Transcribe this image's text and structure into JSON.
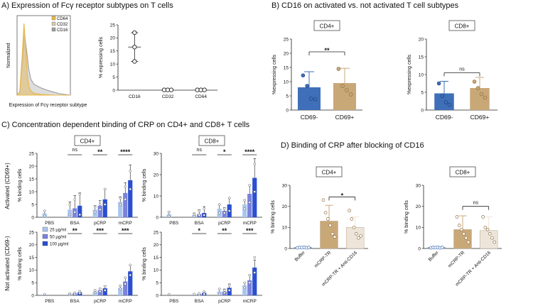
{
  "panel_titles": {
    "A": "A) Expression of Fcγ receptor subtypes on T cells",
    "B": "B) CD16 on activated vs. not activated T cell subtypes",
    "C": "C) Concentration dependent binding of CRP on CD4+ and CD8+ T cells",
    "D": "D) Binding of CRP after blocking of CD16"
  },
  "colors": {
    "cd64": "#e8b84a",
    "cd32": "#d9c9a8",
    "cd16": "#9e9e9e",
    "cd69_neg": "#3f6fb8",
    "cd69_pos": "#c9a878",
    "conc_25": "#a9c6ee",
    "conc_50": "#7a82dd",
    "conc_100": "#2a4fd0",
    "buffer": "#3f6fb8",
    "mcrp_tr": "#c9a878",
    "anti_cd16": "#eee5da"
  },
  "chart_data": [
    {
      "id": "A1",
      "type": "line",
      "title": "",
      "xlabel": "Expression of Fcγ receptor subtype",
      "ylabel": "Normalized",
      "legend": [
        "CD64",
        "CD32",
        "CD16"
      ],
      "legend_position": "top-right",
      "series": [
        {
          "name": "CD64",
          "x": [
            0,
            0.05,
            0.1,
            0.13,
            0.16,
            0.19,
            0.22,
            0.26,
            0.32,
            0.45,
            0.7,
            1
          ],
          "values": [
            0,
            0.05,
            0.6,
            1.0,
            0.7,
            0.3,
            0.12,
            0.05,
            0.02,
            0.01,
            0,
            0
          ]
        },
        {
          "name": "CD32",
          "x": [
            0,
            0.05,
            0.1,
            0.13,
            0.16,
            0.19,
            0.22,
            0.26,
            0.32,
            0.45,
            0.7,
            1
          ],
          "values": [
            0,
            0.04,
            0.5,
            0.92,
            0.66,
            0.3,
            0.13,
            0.06,
            0.03,
            0.01,
            0,
            0
          ]
        },
        {
          "name": "CD16",
          "x": [
            0,
            0.05,
            0.1,
            0.14,
            0.18,
            0.22,
            0.26,
            0.32,
            0.45,
            0.6,
            0.8,
            1
          ],
          "values": [
            0,
            0.04,
            0.45,
            0.85,
            0.62,
            0.36,
            0.22,
            0.15,
            0.1,
            0.06,
            0.02,
            0
          ]
        }
      ]
    },
    {
      "id": "A2",
      "type": "scatter",
      "ylabel": "% expressing cells",
      "ylim": [
        0,
        25
      ],
      "yticks": [
        0,
        5,
        10,
        15,
        20,
        25
      ],
      "categories": [
        "CD16",
        "CD32",
        "CD64"
      ],
      "means": [
        16.5,
        0.1,
        0.1
      ],
      "errors": [
        5.5,
        0,
        0
      ],
      "points": [
        [
          22,
          16.5,
          11
        ],
        [
          0.1,
          0.1,
          0.1
        ],
        [
          0.1,
          0.1,
          0.1
        ]
      ]
    },
    {
      "id": "B_CD4",
      "type": "bar",
      "box_label": "CD4+",
      "ylabel": "%expressing cells",
      "ylim": [
        0,
        25
      ],
      "yticks": [
        0,
        5,
        10,
        15,
        20,
        25
      ],
      "categories": [
        "CD69-",
        "CD69+"
      ],
      "values": [
        8,
        9.5
      ],
      "errors": [
        5.5,
        5.2
      ],
      "points": [
        [
          12.2,
          8.5,
          4,
          3.8
        ],
        [
          14.5,
          8.5,
          7,
          5.5
        ]
      ],
      "comparison": {
        "from": 0,
        "to": 1,
        "label": "**"
      }
    },
    {
      "id": "B_CD8",
      "type": "bar",
      "box_label": "CD8+",
      "ylabel": "%expressing cells",
      "ylim": [
        0,
        20
      ],
      "yticks": [
        0,
        5,
        10,
        15,
        20
      ],
      "categories": [
        "CD69-",
        "CD69+"
      ],
      "values": [
        4.7,
        6.2
      ],
      "errors": [
        3.4,
        3
      ],
      "points": [
        [
          7.5,
          4,
          2.2,
          1.5
        ],
        [
          8,
          6.2,
          4.5,
          3.5
        ]
      ],
      "comparison": {
        "from": 0,
        "to": 1,
        "label": "ns"
      }
    },
    {
      "id": "C_act_CD4",
      "type": "bar",
      "box_label": "CD4+",
      "row_label": "Activated (CD69+)",
      "ylabel": "% binding cells",
      "ylim": [
        0,
        25
      ],
      "yticks": [
        0,
        5,
        10,
        15,
        20,
        25
      ],
      "categories": [
        "PBS",
        "BSA",
        "pCRP",
        "mCRP"
      ],
      "series": [
        {
          "name": "25 µg/ml",
          "values": [
            1.5,
            3,
            3,
            6
          ]
        },
        {
          "name": "50 µg/ml",
          "values": [
            null,
            3.5,
            4.5,
            9.5
          ]
        },
        {
          "name": "100 µg/ml",
          "values": [
            null,
            4.5,
            7,
            14.5
          ]
        }
      ],
      "errors": [
        [
          1,
          3,
          1.5,
          2
        ],
        [
          null,
          5,
          2,
          4
        ],
        [
          null,
          5,
          4,
          6
        ]
      ],
      "points": [
        [
          [
            0.5,
            2.5
          ],
          [
            1,
            5
          ],
          [
            2,
            4
          ],
          [
            5,
            7.5
          ]
        ],
        [
          [],
          [
            2,
            7
          ],
          [
            3,
            5
          ],
          [
            7,
            12
          ]
        ],
        [
          [],
          [
            1,
            9
          ],
          [
            5,
            11
          ],
          [
            11,
            18
          ]
        ]
      ],
      "comparisons": [
        {
          "category": 1,
          "label": "ns"
        },
        {
          "category": 2,
          "label": "**"
        },
        {
          "category": 3,
          "label": "****"
        }
      ]
    },
    {
      "id": "C_act_CD8",
      "type": "bar",
      "box_label": "CD8+",
      "ylabel": "% binding cells",
      "ylim": [
        0,
        30
      ],
      "yticks": [
        0,
        10,
        20,
        30
      ],
      "categories": [
        "PBS",
        "BSA",
        "pCRP",
        "mCRP"
      ],
      "series": [
        {
          "name": "25 µg/ml",
          "values": [
            1.5,
            1,
            4,
            6
          ]
        },
        {
          "name": "50 µg/ml",
          "values": [
            null,
            1.5,
            3,
            11
          ]
        },
        {
          "name": "100 µg/ml",
          "values": [
            null,
            2,
            6,
            18.5
          ]
        }
      ],
      "errors": [
        [
          1,
          1,
          2,
          2
        ],
        [
          null,
          2,
          1.5,
          4
        ],
        [
          null,
          3,
          3,
          9
        ]
      ],
      "points": [
        [
          [
            0.5,
            2.5
          ],
          [
            0.5,
            1.5
          ],
          [
            2,
            6
          ],
          [
            4,
            8
          ]
        ],
        [
          [],
          [
            1,
            3
          ],
          [
            2,
            4
          ],
          [
            7,
            15
          ]
        ],
        [
          [],
          [
            1,
            4
          ],
          [
            3,
            9
          ],
          [
            12,
            25
          ]
        ]
      ],
      "comparisons": [
        {
          "category": 1,
          "label": "ns"
        },
        {
          "category": 2,
          "label": "*"
        },
        {
          "category": 3,
          "label": "****"
        }
      ]
    },
    {
      "id": "C_nonact_CD4",
      "type": "bar",
      "row_label": "Not activated (CD69-)",
      "ylabel": "% binding cells",
      "ylim": [
        0,
        25
      ],
      "yticks": [
        0,
        5,
        10,
        15,
        20,
        25
      ],
      "categories": [
        "PBS",
        "BSA",
        "pCRP",
        "mCRP"
      ],
      "series": [
        {
          "name": "25 µg/ml",
          "values": [
            0.3,
            0.5,
            1.5,
            3
          ]
        },
        {
          "name": "50 µg/ml",
          "values": [
            null,
            0.8,
            2,
            5.5
          ]
        },
        {
          "name": "100 µg/ml",
          "values": [
            null,
            1.2,
            2.8,
            9.5
          ]
        }
      ],
      "errors": [
        [
          0.2,
          0.3,
          0.6,
          0.8
        ],
        [
          null,
          0.4,
          0.8,
          1.5
        ],
        [
          null,
          0.5,
          1,
          2.5
        ]
      ],
      "points": [
        [
          [
            0.2,
            0.4
          ],
          [
            0.3,
            0.7
          ],
          [
            1,
            2
          ],
          [
            2.5,
            3.8
          ]
        ],
        [
          [],
          [
            0.5,
            1
          ],
          [
            1.5,
            2.5
          ],
          [
            4.5,
            7
          ]
        ],
        [
          [],
          [
            0.8,
            1.6
          ],
          [
            2,
            3.5
          ],
          [
            8,
            12
          ]
        ]
      ],
      "comparisons": [
        {
          "category": 1,
          "label": "**"
        },
        {
          "category": 2,
          "label": "***"
        },
        {
          "category": 3,
          "label": "***"
        }
      ],
      "legend": [
        "25 µg/ml",
        "50 µg/ml",
        "100 µg/ml"
      ]
    },
    {
      "id": "C_nonact_CD8",
      "type": "bar",
      "ylabel": "% binding cells",
      "ylim": [
        0,
        25
      ],
      "yticks": [
        0,
        5,
        10,
        15,
        20,
        25
      ],
      "categories": [
        "PBS",
        "BSA",
        "pCRP",
        "mCRP"
      ],
      "series": [
        {
          "name": "25 µg/ml",
          "values": [
            0.3,
            0.3,
            1.5,
            4
          ]
        },
        {
          "name": "50 µg/ml",
          "values": [
            null,
            0.5,
            1.5,
            6
          ]
        },
        {
          "name": "100 µg/ml",
          "values": [
            null,
            1,
            3,
            11
          ]
        }
      ],
      "errors": [
        [
          0.2,
          0.3,
          1,
          1
        ],
        [
          null,
          0.3,
          1,
          2
        ],
        [
          null,
          0.5,
          1.5,
          3
        ]
      ],
      "points": [
        [
          [
            0.2,
            0.4
          ],
          [
            0.2,
            0.5
          ],
          [
            0.5,
            2.5
          ],
          [
            3,
            5
          ]
        ],
        [
          [],
          [
            0.3,
            0.8
          ],
          [
            1,
            2
          ],
          [
            5,
            8
          ]
        ],
        [
          [],
          [
            0.5,
            1.5
          ],
          [
            2,
            4
          ],
          [
            9,
            15
          ]
        ]
      ],
      "comparisons": [
        {
          "category": 1,
          "label": "*"
        },
        {
          "category": 2,
          "label": "**"
        },
        {
          "category": 3,
          "label": "***"
        }
      ]
    },
    {
      "id": "D_CD4",
      "type": "bar",
      "box_label": "CD4+",
      "ylabel": "% binding cells",
      "ylim": [
        0,
        30
      ],
      "yticks": [
        0,
        10,
        20,
        30
      ],
      "categories": [
        "Buffer",
        "mCRP-TR",
        "mCRP-TR + Anti-CD16"
      ],
      "values": [
        0.5,
        13,
        10
      ],
      "errors": [
        0.3,
        7.5,
        5
      ],
      "points": [
        [
          0.3,
          0.5,
          0.4,
          0.6,
          0.3,
          0.5
        ],
        [
          23,
          17,
          14,
          11,
          7,
          5.5
        ],
        [
          18,
          14,
          10,
          7,
          5,
          6
        ]
      ],
      "comparison": {
        "from": 1,
        "to": 2,
        "label": "*"
      }
    },
    {
      "id": "D_CD8",
      "type": "bar",
      "box_label": "CD8+",
      "ylabel": "% binding cells",
      "ylim": [
        0,
        30
      ],
      "yticks": [
        0,
        10,
        20,
        30
      ],
      "categories": [
        "Buffer",
        "mCRP-TR",
        "mCRP-TR + Anti-CD16"
      ],
      "values": [
        0.5,
        9,
        8.5
      ],
      "errors": [
        0.3,
        6.5,
        6.5
      ],
      "points": [
        [
          0.3,
          0.5,
          0.4,
          0.6,
          0.3,
          0.5
        ],
        [
          15,
          11,
          9,
          7,
          5,
          3
        ],
        [
          15,
          10,
          9,
          7,
          5,
          3
        ]
      ],
      "comparison": {
        "from": 1,
        "to": 2,
        "label": "ns"
      }
    }
  ]
}
